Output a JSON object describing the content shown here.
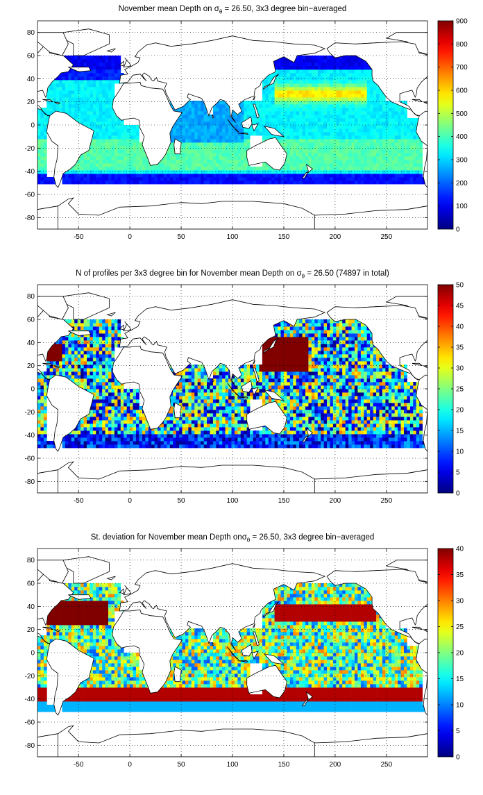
{
  "chart_data": [
    {
      "type": "heatmap",
      "title_prefix": "November mean Depth on ",
      "title_symbol": "σ",
      "title_sub": "θ",
      "title_suffix": " = 26.50, 3x3 degree bin−averaged",
      "x_ticks": [
        "-50",
        "0",
        "50",
        "100",
        "150",
        "200",
        "250"
      ],
      "y_ticks": [
        "80",
        "60",
        "40",
        "20",
        "0",
        "-20",
        "-40",
        "-60",
        "-80"
      ],
      "xlim": [
        -90,
        290
      ],
      "ylim": [
        -90,
        90
      ],
      "grid": "dotted",
      "colorbar": {
        "range": [
          0,
          900
        ],
        "ticks": [
          "900",
          "800",
          "700",
          "600",
          "500",
          "400",
          "300",
          "200",
          "100",
          "0"
        ],
        "colormap": "jet"
      },
      "field": "depth"
    },
    {
      "type": "heatmap",
      "title_prefix": "N of profiles per 3x3 degree bin for November mean Depth on ",
      "title_symbol": "σ",
      "title_sub": "θ",
      "title_suffix": " = 26.50 (74897 in total)",
      "x_ticks": [
        "-50",
        "0",
        "50",
        "100",
        "150",
        "200",
        "250"
      ],
      "y_ticks": [
        "80",
        "60",
        "40",
        "20",
        "0",
        "-20",
        "-40",
        "-60",
        "-80"
      ],
      "xlim": [
        -90,
        290
      ],
      "ylim": [
        -90,
        90
      ],
      "grid": "dotted",
      "colorbar": {
        "range": [
          0,
          50
        ],
        "ticks": [
          "50",
          "45",
          "40",
          "35",
          "30",
          "25",
          "20",
          "15",
          "10",
          "5",
          "0"
        ],
        "colormap": "jet"
      },
      "field": "count"
    },
    {
      "type": "heatmap",
      "title_prefix": "St. deviation for November mean Depth on",
      "title_symbol": "σ",
      "title_sub": "θ",
      "title_suffix": " = 26.50, 3x3 degree bin−averaged",
      "x_ticks": [
        "-50",
        "0",
        "50",
        "100",
        "150",
        "200",
        "250"
      ],
      "y_ticks": [
        "80",
        "60",
        "40",
        "20",
        "0",
        "-20",
        "-40",
        "-60",
        "-80"
      ],
      "xlim": [
        -90,
        290
      ],
      "ylim": [
        -90,
        90
      ],
      "grid": "dotted",
      "colorbar": {
        "range": [
          0,
          40
        ],
        "ticks": [
          "40",
          "35",
          "30",
          "25",
          "20",
          "15",
          "10",
          "5",
          "0"
        ],
        "colormap": "jet"
      },
      "field": "std"
    }
  ]
}
